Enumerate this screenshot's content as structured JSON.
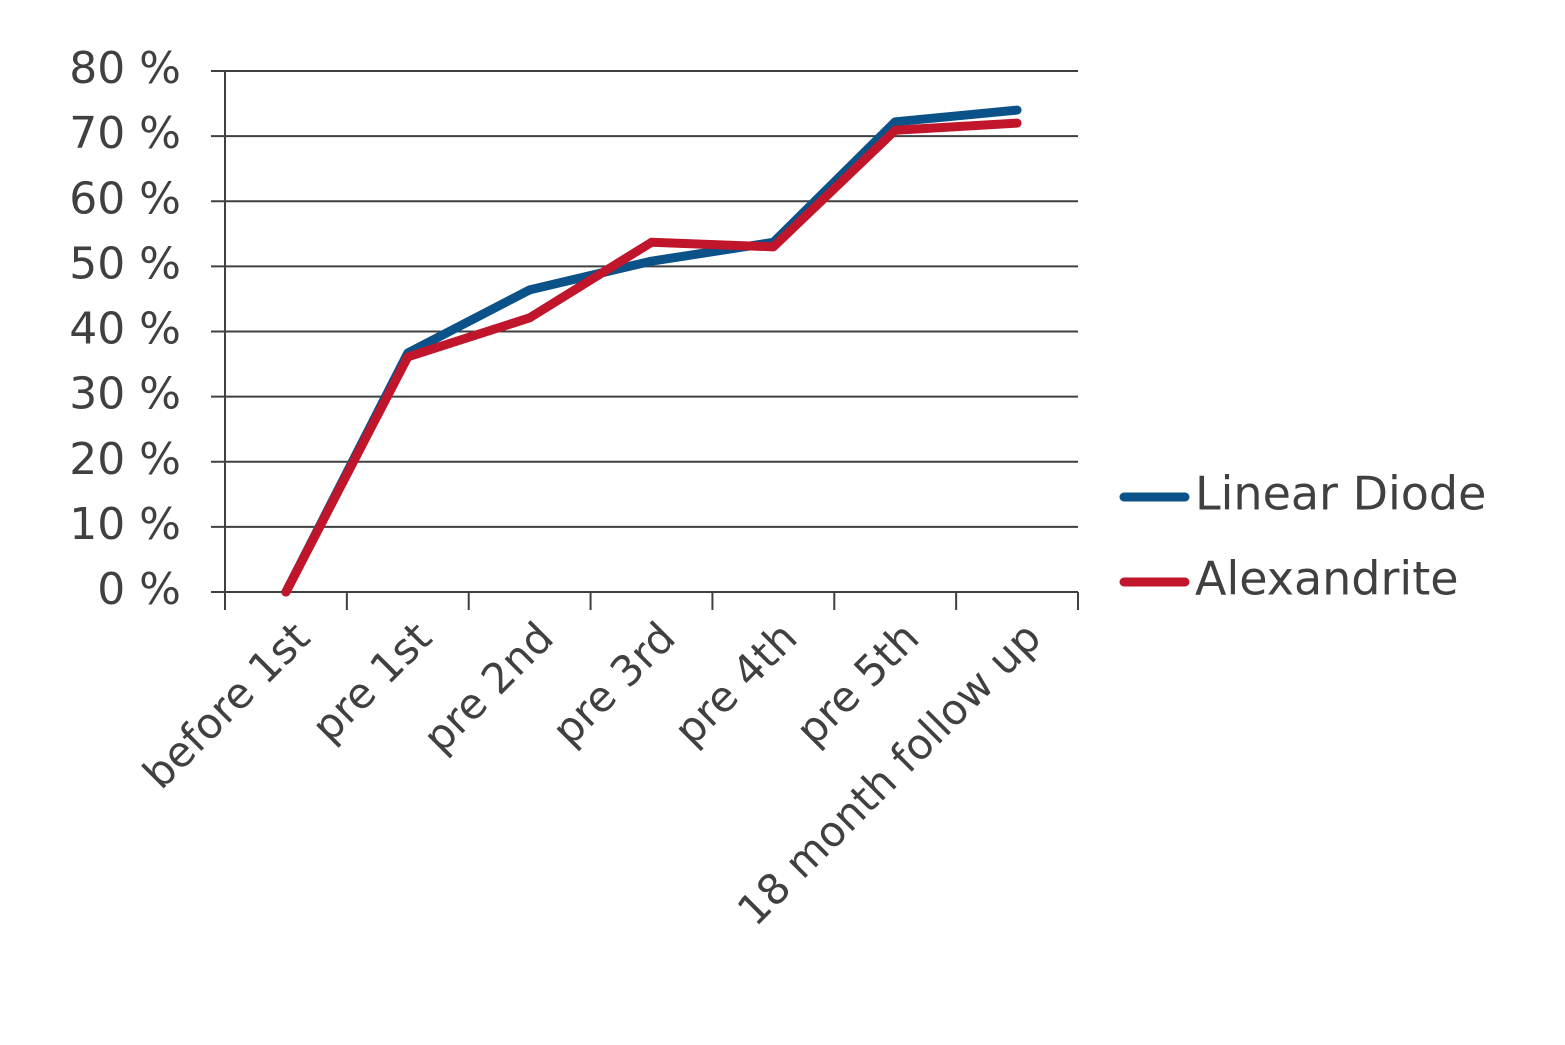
{
  "chart_data": {
    "type": "line",
    "categories": [
      "before 1st",
      "pre 1st",
      "pre 2nd",
      "pre 3rd",
      "pre 4th",
      "pre 5th",
      "18 month follow up"
    ],
    "series": [
      {
        "name": "Linear Diode",
        "color": "#0b5289",
        "values": [
          0,
          36.7,
          46.4,
          50.8,
          53.7,
          72.2,
          74.0
        ]
      },
      {
        "name": "Alexandrite",
        "color": "#c0152a",
        "values": [
          0,
          36.1,
          42.1,
          53.7,
          53.0,
          70.9,
          72.0
        ]
      }
    ],
    "ylim": [
      0,
      80
    ],
    "yticks": [
      {
        "value": 0,
        "label": "0 %"
      },
      {
        "value": 10,
        "label": "10 %"
      },
      {
        "value": 20,
        "label": "20 %"
      },
      {
        "value": 30,
        "label": "30 %"
      },
      {
        "value": 40,
        "label": "40 %"
      },
      {
        "value": 50,
        "label": "50 %"
      },
      {
        "value": 60,
        "label": "60 %"
      },
      {
        "value": 70,
        "label": "70 %"
      },
      {
        "value": 80,
        "label": "80 %"
      }
    ],
    "grid": true,
    "legend": "right"
  }
}
